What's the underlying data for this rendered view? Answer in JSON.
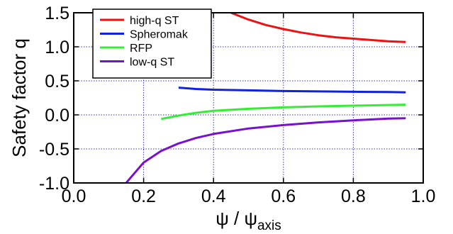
{
  "chart_data": {
    "type": "line",
    "title": "",
    "xlabel": {
      "symbol": "ψ",
      "separator": " / ",
      "base": "ψ",
      "subscript": "axis"
    },
    "ylabel": "Safety factor q",
    "xlim": [
      0.0,
      1.0
    ],
    "ylim": [
      -1.0,
      1.5
    ],
    "xticks": [
      "0.0",
      "0.2",
      "0.4",
      "0.6",
      "0.8",
      "1.0"
    ],
    "yticks": [
      "-1.0",
      "-0.5",
      "0.0",
      "0.5",
      "1.0",
      "1.5"
    ],
    "grid": true,
    "grid_style": "dotted",
    "grid_color": "#3333cc",
    "legend_position": "top-left",
    "series": [
      {
        "name": "high-q ST",
        "color": "#ee1111",
        "points": [
          [
            0.45,
            1.5
          ],
          [
            0.5,
            1.4
          ],
          [
            0.55,
            1.32
          ],
          [
            0.6,
            1.26
          ],
          [
            0.65,
            1.21
          ],
          [
            0.7,
            1.17
          ],
          [
            0.75,
            1.14
          ],
          [
            0.8,
            1.12
          ],
          [
            0.85,
            1.1
          ],
          [
            0.9,
            1.08
          ],
          [
            0.95,
            1.07
          ]
        ]
      },
      {
        "name": "Spheromak",
        "color": "#1122dd",
        "points": [
          [
            0.3,
            0.4
          ],
          [
            0.35,
            0.38
          ],
          [
            0.4,
            0.37
          ],
          [
            0.5,
            0.36
          ],
          [
            0.6,
            0.35
          ],
          [
            0.7,
            0.345
          ],
          [
            0.8,
            0.34
          ],
          [
            0.9,
            0.335
          ],
          [
            0.95,
            0.33
          ]
        ]
      },
      {
        "name": "RFP",
        "color": "#33ee33",
        "points": [
          [
            0.25,
            -0.06
          ],
          [
            0.3,
            -0.01
          ],
          [
            0.35,
            0.03
          ],
          [
            0.4,
            0.06
          ],
          [
            0.5,
            0.09
          ],
          [
            0.6,
            0.11
          ],
          [
            0.7,
            0.125
          ],
          [
            0.8,
            0.135
          ],
          [
            0.9,
            0.145
          ],
          [
            0.95,
            0.15
          ]
        ]
      },
      {
        "name": "low-q ST",
        "color": "#7711cc",
        "points": [
          [
            0.15,
            -1.0
          ],
          [
            0.2,
            -0.7
          ],
          [
            0.25,
            -0.53
          ],
          [
            0.3,
            -0.42
          ],
          [
            0.35,
            -0.34
          ],
          [
            0.4,
            -0.28
          ],
          [
            0.5,
            -0.2
          ],
          [
            0.6,
            -0.15
          ],
          [
            0.7,
            -0.11
          ],
          [
            0.8,
            -0.08
          ],
          [
            0.9,
            -0.055
          ],
          [
            0.95,
            -0.05
          ]
        ]
      }
    ]
  }
}
